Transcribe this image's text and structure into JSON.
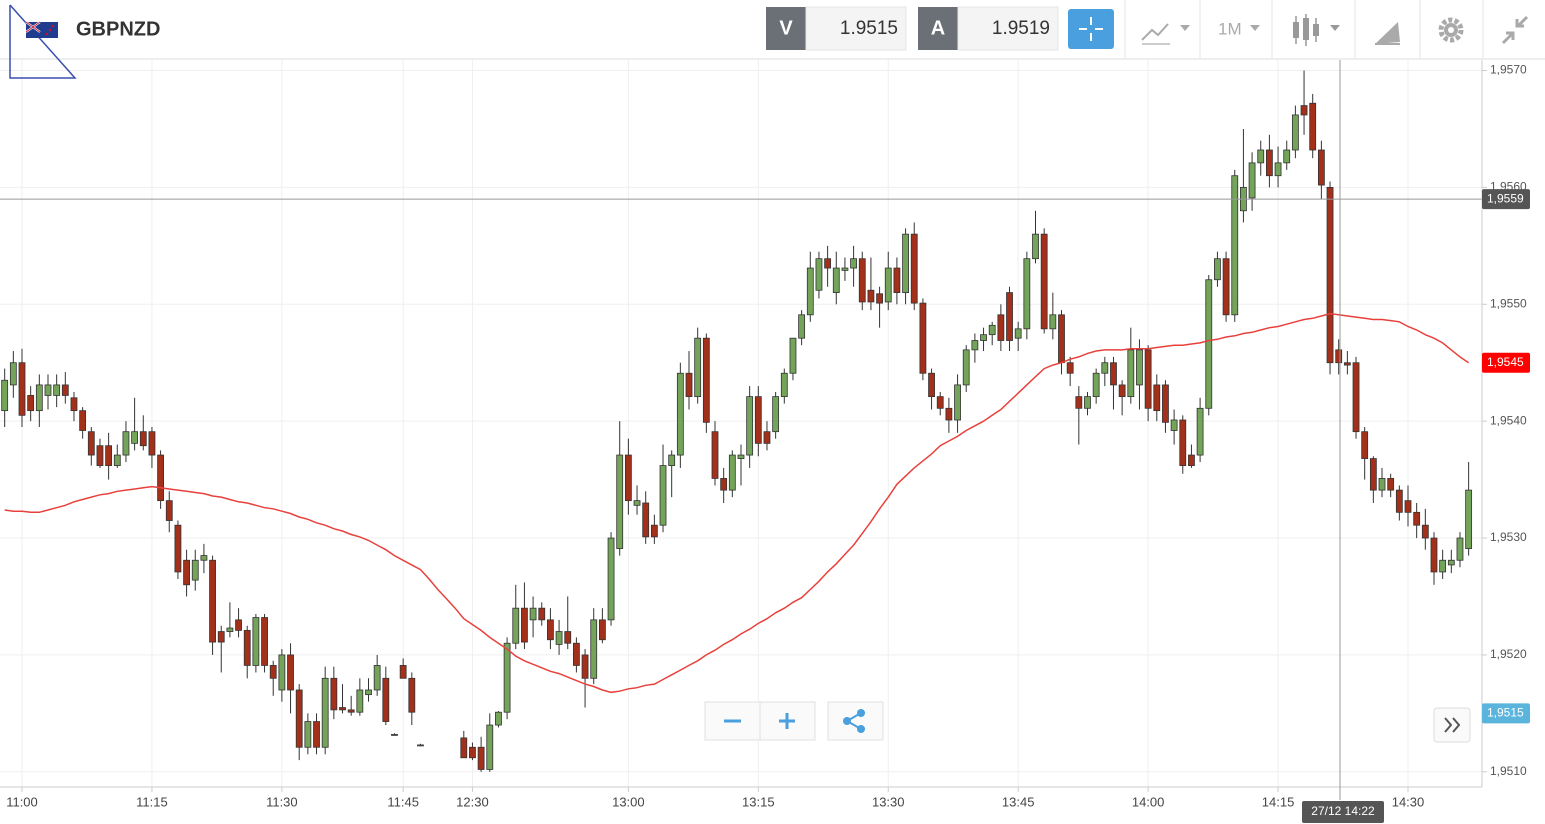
{
  "header": {
    "symbol": "GBPNZD",
    "bid_label": "V",
    "bid": 1.9515,
    "ask_label": "A",
    "ask": 1.9519,
    "timeframe": "1M"
  },
  "chart_data": {
    "type": "candlestick",
    "categories": [
      null,
      null,
      "11:00",
      null,
      null,
      null,
      null,
      null,
      null,
      null,
      null,
      null,
      null,
      null,
      null,
      null,
      null,
      "11:15",
      null,
      null,
      null,
      null,
      null,
      null,
      null,
      null,
      null,
      null,
      null,
      null,
      null,
      null,
      "11:30",
      null,
      null,
      null,
      null,
      null,
      null,
      null,
      null,
      null,
      null,
      null,
      null,
      null,
      "11:45",
      null,
      null,
      null,
      null,
      null,
      null,
      null,
      "12:30",
      null,
      null,
      null,
      null,
      null,
      null,
      null,
      null,
      null,
      null,
      null,
      null,
      null,
      null,
      null,
      null,
      null,
      "13:00",
      null,
      null,
      null,
      null,
      null,
      null,
      null,
      null,
      null,
      null,
      null,
      null,
      null,
      null,
      "13:15",
      null,
      null,
      null,
      null,
      null,
      null,
      null,
      null,
      null,
      null,
      null,
      null,
      null,
      null,
      "13:30",
      null,
      null,
      null,
      null,
      null,
      null,
      null,
      null,
      null,
      null,
      null,
      null,
      null,
      null,
      "13:45",
      null,
      null,
      null,
      null,
      null,
      null,
      null,
      null,
      null,
      null,
      null,
      null,
      null,
      null,
      "14:00",
      null,
      null,
      null,
      null,
      null,
      null,
      null,
      null,
      null,
      null,
      null,
      null,
      null,
      null,
      "14:15",
      null,
      null,
      null,
      null,
      null,
      null,
      null,
      null,
      null,
      null,
      null,
      null,
      null,
      null,
      "14:30",
      null,
      null,
      null,
      null,
      null,
      null,
      null
    ],
    "ohlc": [
      [
        1.95409,
        1.95445,
        1.95395,
        1.95435
      ],
      [
        1.95431,
        1.9546,
        1.9542,
        1.9545
      ],
      [
        1.9545,
        1.95462,
        1.95395,
        1.95405
      ],
      [
        1.95422,
        1.9543,
        1.954,
        1.95409
      ],
      [
        1.95409,
        1.9544,
        1.95395,
        1.95431
      ],
      [
        1.95422,
        1.9544,
        1.9541,
        1.95431
      ],
      [
        1.95422,
        1.9544,
        1.95412,
        1.95431
      ],
      [
        1.95431,
        1.95442,
        1.95415,
        1.95422
      ],
      [
        1.9542,
        1.95425,
        1.954,
        1.95409
      ],
      [
        1.95409,
        1.95412,
        1.95385,
        1.95392
      ],
      [
        1.95391,
        1.95395,
        1.95362,
        1.95371
      ],
      [
        1.95379,
        1.95385,
        1.9536,
        1.95362
      ],
      [
        1.95379,
        1.9539,
        1.9535,
        1.95362
      ],
      [
        1.95362,
        1.9538,
        1.9536,
        1.95371
      ],
      [
        1.95371,
        1.954,
        1.95365,
        1.95391
      ],
      [
        1.95381,
        1.9542,
        1.95375,
        1.95391
      ],
      [
        1.95391,
        1.95405,
        1.95375,
        1.95379
      ],
      [
        1.95391,
        1.95395,
        1.9536,
        1.95371
      ],
      [
        1.95371,
        1.95375,
        1.95325,
        1.95332
      ],
      [
        1.95332,
        1.9534,
        1.95305,
        1.95315
      ],
      [
        1.95311,
        1.95315,
        1.95265,
        1.95271
      ],
      [
        1.95281,
        1.9529,
        1.9525,
        1.9526
      ],
      [
        1.95264,
        1.9529,
        1.95255,
        1.95281
      ],
      [
        1.95281,
        1.95295,
        1.9527,
        1.95285
      ],
      [
        1.95281,
        1.95285,
        1.952,
        1.95211
      ],
      [
        1.9522,
        1.95225,
        1.95185,
        1.95211
      ],
      [
        1.9522,
        1.95245,
        1.95215,
        1.95223
      ],
      [
        1.9523,
        1.9524,
        1.95215,
        1.95221
      ],
      [
        1.95221,
        1.95225,
        1.9518,
        1.95191
      ],
      [
        1.95191,
        1.95235,
        1.95185,
        1.95232
      ],
      [
        1.95232,
        1.95235,
        1.95185,
        1.95191
      ],
      [
        1.95191,
        1.95195,
        1.95165,
        1.9518
      ],
      [
        1.9517,
        1.95205,
        1.9516,
        1.952
      ],
      [
        1.952,
        1.9521,
        1.9515,
        1.9517
      ],
      [
        1.9517,
        1.95175,
        1.9511,
        1.95121
      ],
      [
        1.95121,
        1.9515,
        1.95115,
        1.95143
      ],
      [
        1.95143,
        1.9515,
        1.95115,
        1.95121
      ],
      [
        1.95121,
        1.9519,
        1.95115,
        1.9518
      ],
      [
        1.9518,
        1.9519,
        1.95145,
        1.95153
      ],
      [
        1.95155,
        1.95175,
        1.9515,
        1.95153
      ],
      [
        1.95153,
        1.95165,
        1.95148,
        1.95151
      ],
      [
        1.95151,
        1.9518,
        1.95148,
        1.9517
      ],
      [
        1.95166,
        1.9518,
        1.9516,
        1.9517
      ],
      [
        1.9517,
        1.952,
        1.95165,
        1.95191
      ],
      [
        1.9518,
        1.9519,
        1.9514,
        1.95143
      ],
      [
        1.95132,
        1.95133,
        1.95131,
        1.95132
      ],
      [
        1.95191,
        1.95197,
        1.9518,
        1.9518
      ],
      [
        1.9518,
        1.95185,
        1.9514,
        1.95151
      ],
      [
        1.95123,
        1.95124,
        1.95122,
        1.95123
      ],
      null,
      null,
      null,
      null,
      [
        1.95129,
        1.95135,
        1.95112,
        1.95112
      ],
      [
        1.95121,
        1.95125,
        1.9511,
        1.95112
      ],
      [
        1.95121,
        1.9513,
        1.951,
        1.95102
      ],
      [
        1.95102,
        1.9515,
        1.951,
        1.9514
      ],
      [
        1.9514,
        1.95152,
        1.95138,
        1.95151
      ],
      [
        1.95151,
        1.95215,
        1.95145,
        1.9521
      ],
      [
        1.9521,
        1.9526,
        1.95205,
        1.9524
      ],
      [
        1.9524,
        1.95262,
        1.95205,
        1.95211
      ],
      [
        1.9523,
        1.9525,
        1.95215,
        1.9524
      ],
      [
        1.9524,
        1.95245,
        1.95225,
        1.9523
      ],
      [
        1.9523,
        1.9524,
        1.95205,
        1.95213
      ],
      [
        1.95209,
        1.9523,
        1.952,
        1.9522
      ],
      [
        1.9522,
        1.9525,
        1.95205,
        1.9521
      ],
      [
        1.9521,
        1.95215,
        1.95185,
        1.95191
      ],
      [
        1.952,
        1.95205,
        1.95155,
        1.9518
      ],
      [
        1.9518,
        1.9524,
        1.95175,
        1.9523
      ],
      [
        1.9523,
        1.9524,
        1.9521,
        1.95213
      ],
      [
        1.9523,
        1.95305,
        1.95225,
        1.953
      ],
      [
        1.95291,
        1.954,
        1.95285,
        1.95371
      ],
      [
        1.95371,
        1.95385,
        1.9532,
        1.95332
      ],
      [
        1.95328,
        1.95345,
        1.9532,
        1.95332
      ],
      [
        1.9533,
        1.9534,
        1.95295,
        1.95301
      ],
      [
        1.95311,
        1.9532,
        1.95295,
        1.95301
      ],
      [
        1.95311,
        1.9538,
        1.95305,
        1.95362
      ],
      [
        1.95362,
        1.95375,
        1.95335,
        1.95371
      ],
      [
        1.95371,
        1.9545,
        1.9536,
        1.95441
      ],
      [
        1.95441,
        1.9546,
        1.9541,
        1.95421
      ],
      [
        1.95421,
        1.9548,
        1.95415,
        1.95471
      ],
      [
        1.95471,
        1.95475,
        1.9539,
        1.95399
      ],
      [
        1.95391,
        1.954,
        1.95345,
        1.95351
      ],
      [
        1.95351,
        1.9536,
        1.9533,
        1.95341
      ],
      [
        1.95341,
        1.95375,
        1.95335,
        1.95371
      ],
      [
        1.95368,
        1.9538,
        1.95345,
        1.95371
      ],
      [
        1.95371,
        1.9543,
        1.9536,
        1.95421
      ],
      [
        1.95421,
        1.9543,
        1.9537,
        1.95381
      ],
      [
        1.95391,
        1.954,
        1.95375,
        1.95381
      ],
      [
        1.95391,
        1.95425,
        1.95385,
        1.95421
      ],
      [
        1.95421,
        1.95445,
        1.95415,
        1.95441
      ],
      [
        1.95441,
        1.9547,
        1.95435,
        1.95471
      ],
      [
        1.95471,
        1.95495,
        1.95465,
        1.95491
      ],
      [
        1.95491,
        1.95545,
        1.95485,
        1.95531
      ],
      [
        1.95512,
        1.95545,
        1.95505,
        1.95539
      ],
      [
        1.95539,
        1.9555,
        1.95515,
        1.95531
      ],
      [
        1.9551,
        1.95545,
        1.955,
        1.95531
      ],
      [
        1.95529,
        1.9554,
        1.9552,
        1.95531
      ],
      [
        1.95531,
        1.9555,
        1.95515,
        1.95539
      ],
      [
        1.95539,
        1.95545,
        1.95495,
        1.95502
      ],
      [
        1.95512,
        1.9554,
        1.95495,
        1.95502
      ],
      [
        1.95509,
        1.95515,
        1.9548,
        1.95501
      ],
      [
        1.95502,
        1.95545,
        1.95495,
        1.95531
      ],
      [
        1.95531,
        1.9554,
        1.955,
        1.9551
      ],
      [
        1.9551,
        1.95565,
        1.955,
        1.9556
      ],
      [
        1.9556,
        1.9557,
        1.95495,
        1.95501
      ],
      [
        1.95501,
        1.95505,
        1.95435,
        1.95441
      ],
      [
        1.95441,
        1.95445,
        1.9541,
        1.95421
      ],
      [
        1.95421,
        1.95425,
        1.95405,
        1.95411
      ],
      [
        1.95411,
        1.9542,
        1.9539,
        1.95401
      ],
      [
        1.95401,
        1.9544,
        1.9539,
        1.95431
      ],
      [
        1.95431,
        1.95465,
        1.95425,
        1.95461
      ],
      [
        1.95461,
        1.95475,
        1.9545,
        1.95469
      ],
      [
        1.95469,
        1.9548,
        1.9546,
        1.95474
      ],
      [
        1.95474,
        1.95485,
        1.95465,
        1.95482
      ],
      [
        1.95491,
        1.955,
        1.9546,
        1.95469
      ],
      [
        1.9551,
        1.95515,
        1.9546,
        1.95469
      ],
      [
        1.95471,
        1.95485,
        1.9546,
        1.95479
      ],
      [
        1.95479,
        1.95545,
        1.9547,
        1.95539
      ],
      [
        1.95539,
        1.9558,
        1.95535,
        1.9556
      ],
      [
        1.9556,
        1.95565,
        1.95475,
        1.95479
      ],
      [
        1.95479,
        1.9551,
        1.9547,
        1.95491
      ],
      [
        1.95491,
        1.95495,
        1.9544,
        1.9545
      ],
      [
        1.9545,
        1.95455,
        1.9543,
        1.95441
      ],
      [
        1.95421,
        1.9543,
        1.9538,
        1.95411
      ],
      [
        1.95411,
        1.95425,
        1.95405,
        1.95421
      ],
      [
        1.95421,
        1.95445,
        1.95415,
        1.95441
      ],
      [
        1.95441,
        1.95455,
        1.9543,
        1.9545
      ],
      [
        1.9545,
        1.95455,
        1.9541,
        1.95431
      ],
      [
        1.95431,
        1.95435,
        1.95405,
        1.95421
      ],
      [
        1.95421,
        1.9548,
        1.95415,
        1.95461
      ],
      [
        1.95431,
        1.9547,
        1.9541,
        1.95461
      ],
      [
        1.95461,
        1.95465,
        1.954,
        1.95411
      ],
      [
        1.95431,
        1.9544,
        1.954,
        1.95409
      ],
      [
        1.95431,
        1.95435,
        1.9539,
        1.95399
      ],
      [
        1.95392,
        1.9541,
        1.9538,
        1.95401
      ],
      [
        1.95401,
        1.95405,
        1.95355,
        1.95362
      ],
      [
        1.95371,
        1.9538,
        1.9536,
        1.95362
      ],
      [
        1.95371,
        1.9542,
        1.95365,
        1.95411
      ],
      [
        1.95411,
        1.95525,
        1.95405,
        1.95521
      ],
      [
        1.95521,
        1.95545,
        1.95515,
        1.95539
      ],
      [
        1.95539,
        1.95545,
        1.95485,
        1.95491
      ],
      [
        1.95491,
        1.95615,
        1.95485,
        1.9561
      ],
      [
        1.9558,
        1.9565,
        1.9557,
        1.956
      ],
      [
        1.95591,
        1.9563,
        1.9558,
        1.95621
      ],
      [
        1.95621,
        1.9564,
        1.9561,
        1.95632
      ],
      [
        1.95632,
        1.95645,
        1.956,
        1.9561
      ],
      [
        1.9561,
        1.95635,
        1.956,
        1.95621
      ],
      [
        1.95621,
        1.9564,
        1.95615,
        1.95632
      ],
      [
        1.95632,
        1.9567,
        1.95625,
        1.95662
      ],
      [
        1.9567,
        1.957,
        1.95645,
        1.95662
      ],
      [
        1.95672,
        1.9568,
        1.95625,
        1.95632
      ],
      [
        1.95632,
        1.9564,
        1.9559,
        1.95602
      ],
      [
        1.956,
        1.95605,
        1.9544,
        1.9545
      ],
      [
        1.95461,
        1.9547,
        1.9544,
        1.9545
      ],
      [
        1.9545,
        1.9546,
        1.9544,
        1.95448
      ],
      [
        1.9545,
        1.95455,
        1.95385,
        1.95391
      ],
      [
        1.95391,
        1.95395,
        1.9535,
        1.95368
      ],
      [
        1.95368,
        1.9537,
        1.9533,
        1.95341
      ],
      [
        1.95341,
        1.9536,
        1.95335,
        1.95351
      ],
      [
        1.95351,
        1.95355,
        1.95335,
        1.95341
      ],
      [
        1.95341,
        1.95345,
        1.95315,
        1.95322
      ],
      [
        1.95332,
        1.95345,
        1.9531,
        1.95322
      ],
      [
        1.95322,
        1.9533,
        1.953,
        1.95311
      ],
      [
        1.95311,
        1.95325,
        1.9529,
        1.953
      ],
      [
        1.953,
        1.95305,
        1.9526,
        1.95271
      ],
      [
        1.95271,
        1.9529,
        1.95265,
        1.95281
      ],
      [
        1.95277,
        1.9529,
        1.9527,
        1.95281
      ],
      [
        1.95281,
        1.95305,
        1.95275,
        1.953
      ],
      [
        1.95291,
        1.95365,
        1.95285,
        1.95341
      ]
    ],
    "up_color": "#73a45a",
    "down_color": "#a3301a",
    "wick_color": "#333333",
    "ma": {
      "color": "#e8413c",
      "values": [
        1.95324,
        1.95323,
        1.95323,
        1.95322,
        1.95322,
        1.95324,
        1.95326,
        1.95328,
        1.95331,
        1.95333,
        1.95335,
        1.95337,
        1.95338,
        1.9534,
        1.95341,
        1.95342,
        1.95343,
        1.95344,
        1.95343,
        1.95342,
        1.95341,
        1.9534,
        1.95339,
        1.95338,
        1.95336,
        1.95335,
        1.95333,
        1.95331,
        1.9533,
        1.95328,
        1.95326,
        1.95325,
        1.95323,
        1.95321,
        1.95318,
        1.95316,
        1.95313,
        1.95311,
        1.95308,
        1.95306,
        1.95303,
        1.95301,
        1.95298,
        1.95294,
        1.9529,
        1.95285,
        1.95281,
        1.95277,
        1.95273,
        1.95265,
        1.95256,
        1.95248,
        1.9524,
        1.95231,
        1.95226,
        1.95221,
        1.95215,
        1.9521,
        1.95205,
        1.95199,
        1.95195,
        1.95192,
        1.95189,
        1.95186,
        1.95184,
        1.95181,
        1.95178,
        1.95175,
        1.95173,
        1.9517,
        1.95168,
        1.95169,
        1.95171,
        1.95172,
        1.95174,
        1.95175,
        1.95179,
        1.95183,
        1.95187,
        1.95191,
        1.95195,
        1.952,
        1.95204,
        1.95209,
        1.95213,
        1.95218,
        1.95222,
        1.95227,
        1.95231,
        1.95236,
        1.9524,
        1.95245,
        1.95249,
        1.95256,
        1.95263,
        1.95271,
        1.95278,
        1.95286,
        1.95294,
        1.95304,
        1.95314,
        1.95325,
        1.95335,
        1.95346,
        1.95353,
        1.9536,
        1.95366,
        1.95372,
        1.95379,
        1.95383,
        1.95387,
        1.95392,
        1.95396,
        1.954,
        1.95405,
        1.9541,
        1.95417,
        1.95424,
        1.95431,
        1.95438,
        1.95445,
        1.95448,
        1.9545,
        1.95453,
        1.95455,
        1.95458,
        1.9546,
        1.95461,
        1.95461,
        1.95461,
        1.95462,
        1.95462,
        1.95462,
        1.95463,
        1.95464,
        1.95465,
        1.95465,
        1.95466,
        1.95467,
        1.95469,
        1.9547,
        1.95472,
        1.95473,
        1.95475,
        1.95476,
        1.95478,
        1.9548,
        1.95481,
        1.95483,
        1.95485,
        1.95487,
        1.95488,
        1.9549,
        1.95492,
        1.95491,
        1.9549,
        1.95489,
        1.95488,
        1.95487,
        1.95487,
        1.95486,
        1.95485,
        1.95481,
        1.95478,
        1.95474,
        1.95471,
        1.95467,
        1.95461,
        1.95455,
        1.9545
      ]
    },
    "ylim": [
      1.95087,
      1.95709
    ],
    "yticks": [
      {
        "value": 1.951,
        "label": "1,9510"
      },
      {
        "value": 1.952,
        "label": "1,9520"
      },
      {
        "value": 1.953,
        "label": "1,9530"
      },
      {
        "value": 1.954,
        "label": "1,9540"
      },
      {
        "value": 1.955,
        "label": "1,9550"
      },
      {
        "value": 1.956,
        "label": "1,9560"
      },
      {
        "value": 1.957,
        "label": "1,9570"
      }
    ],
    "grid": true,
    "price_tags": [
      {
        "value": 1.9559,
        "label": "1,9559",
        "color": "#555555"
      },
      {
        "value": 1.9545,
        "label": "1,9545",
        "color": "#ff0000"
      },
      {
        "value": 1.9515,
        "label": "1,9515",
        "color": "#5ab4dc"
      }
    ],
    "crosshair_label": "27/12 14:22"
  }
}
